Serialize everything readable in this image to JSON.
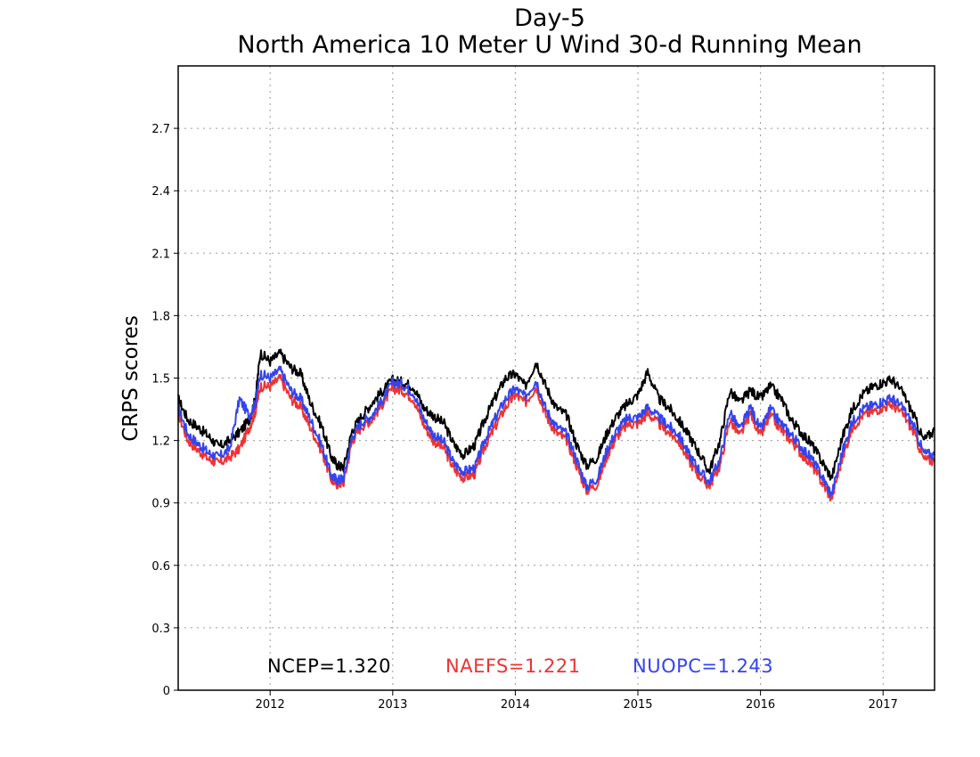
{
  "chart_data": {
    "type": "line",
    "title": "Day-5",
    "subtitle": "North America 10 Meter U Wind 30-d Running Mean",
    "ylabel": "CRPS scores",
    "xlabel": "",
    "ylim": [
      0,
      3.0
    ],
    "yticks": [
      0,
      0.3,
      0.6,
      0.9,
      1.2,
      1.5,
      1.8,
      2.1,
      2.4,
      2.7
    ],
    "ytick_labels": [
      "0",
      "0.3",
      "0.6",
      "0.9",
      "1.2",
      "1.5",
      "1.8",
      "2.1",
      "2.4",
      "2.7"
    ],
    "xlim": [
      2011.25,
      2017.42
    ],
    "xticks": [
      2012,
      2013,
      2014,
      2015,
      2016,
      2017
    ],
    "xtick_labels": [
      "2012",
      "2013",
      "2014",
      "2015",
      "2016",
      "2017"
    ],
    "grid": true,
    "legend_placement": "bottom-center",
    "series": [
      {
        "name": "NCEP",
        "legend_label": "NCEP=1.320",
        "color": "#000000",
        "x": [
          2011.25,
          2011.33,
          2011.42,
          2011.5,
          2011.58,
          2011.67,
          2011.75,
          2011.83,
          2011.88,
          2011.92,
          2012.0,
          2012.08,
          2012.17,
          2012.25,
          2012.33,
          2012.42,
          2012.5,
          2012.55,
          2012.6,
          2012.67,
          2012.75,
          2012.83,
          2012.92,
          2013.0,
          2013.08,
          2013.17,
          2013.25,
          2013.33,
          2013.42,
          2013.5,
          2013.58,
          2013.67,
          2013.75,
          2013.83,
          2013.92,
          2014.0,
          2014.08,
          2014.17,
          2014.25,
          2014.33,
          2014.42,
          2014.5,
          2014.58,
          2014.67,
          2014.75,
          2014.83,
          2014.92,
          2015.0,
          2015.08,
          2015.17,
          2015.25,
          2015.33,
          2015.42,
          2015.5,
          2015.58,
          2015.67,
          2015.75,
          2015.83,
          2015.92,
          2016.0,
          2016.08,
          2016.17,
          2016.25,
          2016.33,
          2016.42,
          2016.5,
          2016.58,
          2016.67,
          2016.75,
          2016.83,
          2016.92,
          2017.0,
          2017.08,
          2017.17,
          2017.25,
          2017.33,
          2017.42
        ],
        "values": [
          1.4,
          1.3,
          1.26,
          1.22,
          1.17,
          1.2,
          1.24,
          1.3,
          1.4,
          1.62,
          1.58,
          1.62,
          1.55,
          1.52,
          1.38,
          1.27,
          1.12,
          1.08,
          1.07,
          1.25,
          1.32,
          1.38,
          1.44,
          1.49,
          1.48,
          1.46,
          1.36,
          1.32,
          1.28,
          1.18,
          1.13,
          1.18,
          1.3,
          1.4,
          1.5,
          1.52,
          1.46,
          1.58,
          1.46,
          1.36,
          1.32,
          1.18,
          1.08,
          1.12,
          1.24,
          1.32,
          1.38,
          1.42,
          1.53,
          1.4,
          1.36,
          1.3,
          1.22,
          1.14,
          1.05,
          1.2,
          1.44,
          1.38,
          1.44,
          1.4,
          1.46,
          1.4,
          1.3,
          1.24,
          1.18,
          1.1,
          1.02,
          1.22,
          1.35,
          1.42,
          1.46,
          1.48,
          1.49,
          1.42,
          1.32,
          1.2,
          1.25
        ]
      },
      {
        "name": "NAEFS",
        "legend_label": "NAEFS=1.221",
        "color": "#ee3333",
        "x": [
          2011.25,
          2011.33,
          2011.42,
          2011.5,
          2011.58,
          2011.67,
          2011.75,
          2011.83,
          2011.88,
          2011.92,
          2012.0,
          2012.08,
          2012.17,
          2012.25,
          2012.33,
          2012.42,
          2012.5,
          2012.55,
          2012.6,
          2012.67,
          2012.75,
          2012.83,
          2012.92,
          2013.0,
          2013.08,
          2013.17,
          2013.25,
          2013.33,
          2013.42,
          2013.5,
          2013.58,
          2013.67,
          2013.75,
          2013.83,
          2013.92,
          2014.0,
          2014.08,
          2014.17,
          2014.25,
          2014.33,
          2014.42,
          2014.5,
          2014.58,
          2014.67,
          2014.75,
          2014.83,
          2014.92,
          2015.0,
          2015.08,
          2015.17,
          2015.25,
          2015.33,
          2015.42,
          2015.5,
          2015.58,
          2015.67,
          2015.75,
          2015.83,
          2015.92,
          2016.0,
          2016.08,
          2016.17,
          2016.25,
          2016.33,
          2016.42,
          2016.5,
          2016.58,
          2016.67,
          2016.75,
          2016.83,
          2016.92,
          2017.0,
          2017.08,
          2017.17,
          2017.25,
          2017.33,
          2017.42
        ],
        "values": [
          1.33,
          1.2,
          1.15,
          1.11,
          1.09,
          1.12,
          1.16,
          1.26,
          1.34,
          1.46,
          1.46,
          1.5,
          1.4,
          1.36,
          1.26,
          1.15,
          1.01,
          0.99,
          1.0,
          1.2,
          1.27,
          1.3,
          1.38,
          1.45,
          1.44,
          1.4,
          1.28,
          1.2,
          1.16,
          1.06,
          1.02,
          1.04,
          1.17,
          1.26,
          1.36,
          1.42,
          1.38,
          1.46,
          1.32,
          1.24,
          1.2,
          1.08,
          0.96,
          0.99,
          1.13,
          1.22,
          1.28,
          1.28,
          1.33,
          1.28,
          1.24,
          1.2,
          1.1,
          1.03,
          0.98,
          1.08,
          1.3,
          1.22,
          1.33,
          1.22,
          1.32,
          1.25,
          1.2,
          1.14,
          1.08,
          1.0,
          0.92,
          1.12,
          1.26,
          1.32,
          1.34,
          1.36,
          1.37,
          1.32,
          1.24,
          1.11,
          1.1
        ]
      },
      {
        "name": "NUOPC",
        "legend_label": "NUOPC=1.243",
        "color": "#3344ee",
        "x": [
          2011.25,
          2011.33,
          2011.42,
          2011.5,
          2011.58,
          2011.67,
          2011.75,
          2011.83,
          2011.88,
          2011.92,
          2012.0,
          2012.08,
          2012.17,
          2012.25,
          2012.33,
          2012.42,
          2012.5,
          2012.55,
          2012.6,
          2012.67,
          2012.75,
          2012.83,
          2012.92,
          2013.0,
          2013.08,
          2013.17,
          2013.25,
          2013.33,
          2013.42,
          2013.5,
          2013.58,
          2013.67,
          2013.75,
          2013.83,
          2013.92,
          2014.0,
          2014.08,
          2014.17,
          2014.25,
          2014.33,
          2014.42,
          2014.5,
          2014.58,
          2014.67,
          2014.75,
          2014.83,
          2014.92,
          2015.0,
          2015.08,
          2015.17,
          2015.25,
          2015.33,
          2015.42,
          2015.5,
          2015.58,
          2015.67,
          2015.75,
          2015.83,
          2015.92,
          2016.0,
          2016.08,
          2016.17,
          2016.25,
          2016.33,
          2016.42,
          2016.5,
          2016.58,
          2016.67,
          2016.75,
          2016.83,
          2016.92,
          2017.0,
          2017.08,
          2017.17,
          2017.25,
          2017.33,
          2017.42
        ],
        "values": [
          1.36,
          1.23,
          1.18,
          1.14,
          1.12,
          1.16,
          1.4,
          1.32,
          1.38,
          1.52,
          1.5,
          1.54,
          1.44,
          1.4,
          1.3,
          1.18,
          1.03,
          1.01,
          1.02,
          1.22,
          1.29,
          1.32,
          1.4,
          1.48,
          1.47,
          1.43,
          1.31,
          1.23,
          1.19,
          1.09,
          1.05,
          1.07,
          1.2,
          1.3,
          1.4,
          1.45,
          1.41,
          1.49,
          1.35,
          1.27,
          1.23,
          1.11,
          0.98,
          1.02,
          1.16,
          1.25,
          1.31,
          1.31,
          1.36,
          1.31,
          1.27,
          1.23,
          1.13,
          1.06,
          1.0,
          1.11,
          1.34,
          1.25,
          1.36,
          1.25,
          1.35,
          1.28,
          1.23,
          1.17,
          1.11,
          1.03,
          0.94,
          1.15,
          1.29,
          1.35,
          1.37,
          1.39,
          1.4,
          1.35,
          1.27,
          1.14,
          1.13
        ]
      }
    ]
  }
}
